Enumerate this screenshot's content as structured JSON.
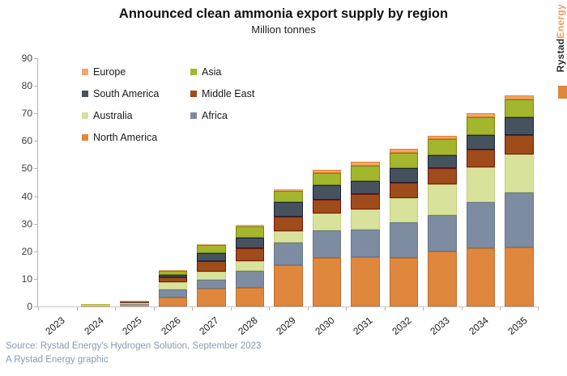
{
  "chart_data": {
    "type": "bar",
    "stacked": true,
    "title": "Announced clean ammonia export supply by region",
    "subtitle": "Million tonnes",
    "unit": "Million tonnes",
    "categories": [
      "2023",
      "2024",
      "2025",
      "2026",
      "2027",
      "2028",
      "2029",
      "2030",
      "2031",
      "2032",
      "2033",
      "2034",
      "2035"
    ],
    "series": [
      {
        "name": "North America",
        "color": "#E0873E",
        "border": "#C06F2D",
        "values": [
          0,
          0.4,
          0.6,
          3.3,
          6.6,
          6.7,
          15.1,
          17.5,
          17.8,
          17.6,
          19.8,
          21.0,
          21.3
        ]
      },
      {
        "name": "Africa",
        "color": "#7D8CA0",
        "border": "#66788E",
        "values": [
          0,
          0,
          0.2,
          2.9,
          3.1,
          6.3,
          8.1,
          10.0,
          10.2,
          12.9,
          13.2,
          16.8,
          20.0
        ]
      },
      {
        "name": "Australia",
        "color": "#D9E29B",
        "border": "#C2CF7A",
        "values": [
          0,
          0.2,
          0.4,
          2.5,
          2.9,
          3.5,
          4.1,
          6.1,
          7.3,
          8.8,
          11.2,
          12.7,
          13.7
        ]
      },
      {
        "name": "Middle East",
        "color": "#9D4C1A",
        "border": "#7A150C",
        "values": [
          0,
          0,
          0.2,
          1.8,
          3.7,
          4.6,
          5.2,
          5.1,
          5.4,
          5.6,
          5.8,
          6.3,
          7.3
        ]
      },
      {
        "name": "South America",
        "color": "#47525F",
        "border": "#16243E",
        "values": [
          0,
          0,
          0.1,
          1.0,
          3.1,
          3.9,
          5.4,
          5.4,
          4.9,
          5.1,
          4.9,
          5.4,
          6.3
        ]
      },
      {
        "name": "Asia",
        "color": "#A4B52E",
        "border": "#76850F",
        "values": [
          0,
          0.1,
          0.1,
          1.5,
          2.9,
          3.9,
          4.1,
          4.4,
          5.4,
          5.6,
          5.8,
          6.3,
          6.5
        ]
      },
      {
        "name": "Europe",
        "color": "#F2A668",
        "border": "#E08030",
        "values": [
          0,
          0,
          0,
          0.2,
          0.2,
          0.6,
          0.6,
          1.2,
          1.5,
          1.5,
          1.3,
          1.5,
          1.3
        ]
      }
    ],
    "ylim": [
      0,
      90
    ],
    "ytick_interval": 10,
    "grid": false,
    "legend": {
      "position": "top-left-inside",
      "columns": 2,
      "order": [
        "Europe",
        "Asia",
        "South America",
        "Middle East",
        "Australia",
        "Africa",
        "North America"
      ]
    }
  },
  "branding": {
    "logo_dark": "Rystad",
    "logo_accent": "Energy",
    "accent_color": "#E0873E",
    "logo_dark_color": "#2B2B2B",
    "logo_accent_color": "#E8A163"
  },
  "footer": {
    "source": "Source: Rystad Energy's Hydrogen Solution, September 2023",
    "credit": "A Rystad Energy graphic"
  }
}
